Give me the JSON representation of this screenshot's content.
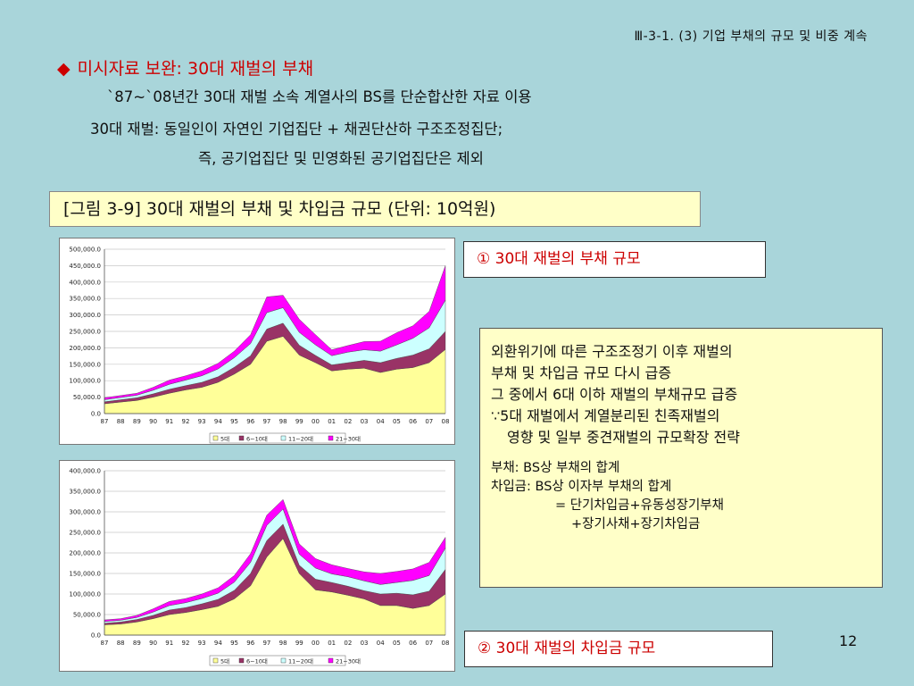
{
  "header": {
    "section": "Ⅲ-3-1. (3) 기업 부채의 규모 및 비중 계속"
  },
  "title": {
    "bullet": "◆",
    "text": "미시자료 보완: 30대 재벌의 부채"
  },
  "description": [
    "`87~`08년간 30대 재벌 소속 계열사의 BS를 단순합산한 자료 이용",
    "30대 재벌: 동일인이 자연인 기업집단 + 채권단산하 구조조정집단;",
    "즉, 공기업집단 및 민영화된 공기업집단은 제외"
  ],
  "figure_title": "[그림 3-9] 30대 재벌의 부채 및 차입금 규모 (단위: 10억원)",
  "captions": {
    "debt": "① 30대 재벌의 부채 규모",
    "borrowing": "② 30대 재벌의 차입금 규모"
  },
  "notes": {
    "main": [
      "외환위기에 따른 구조조정기 이후 재벌의",
      "부채 및 차입금 규모 다시 급증",
      "그 중에서 6대 이하 재벌의 부채규모 급증",
      "∵5대 재벌에서 계열분리된 친족재벌의",
      "영향 및 일부 중견재벌의 규모확장 전략"
    ],
    "defs": [
      "부채: BS상 부채의 합계",
      "차입금: BS상 이자부 부채의 합계",
      "= 단기차입금+유동성장기부채",
      "+장기사채+장기차입금"
    ]
  },
  "page_number": "12",
  "chart_data": [
    {
      "type": "area",
      "stacked": true,
      "title": "",
      "x": [
        "87",
        "88",
        "89",
        "90",
        "91",
        "92",
        "93",
        "94",
        "95",
        "96",
        "97",
        "98",
        "99",
        "00",
        "01",
        "02",
        "03",
        "04",
        "05",
        "06",
        "07",
        "08"
      ],
      "ylim": [
        0,
        500000
      ],
      "yticks": [
        "0.0",
        "50,000.0",
        "100,000.0",
        "150,000.0",
        "200,000.0",
        "250,000.0",
        "300,000.0",
        "350,000.0",
        "400,000.0",
        "450,000.0",
        "500,000.0"
      ],
      "grid": true,
      "legend_position": "bottom",
      "series": [
        {
          "name": "5대",
          "color": "#ffff99",
          "values": [
            30000,
            35000,
            40000,
            50000,
            62000,
            72000,
            80000,
            95000,
            120000,
            150000,
            220000,
            235000,
            178000,
            155000,
            130000,
            135000,
            138000,
            125000,
            135000,
            140000,
            155000,
            195000
          ]
        },
        {
          "name": "6~10대",
          "color": "#993366",
          "values": [
            6000,
            7000,
            8000,
            10000,
            12000,
            13000,
            15000,
            17000,
            21000,
            26000,
            37000,
            40000,
            30000,
            22000,
            18000,
            20000,
            24000,
            30000,
            33000,
            38000,
            42000,
            55000
          ]
        },
        {
          "name": "11~20대",
          "color": "#ccffff",
          "values": [
            6000,
            7000,
            8000,
            11000,
            15000,
            17000,
            20000,
            24000,
            29000,
            37000,
            50000,
            47000,
            39000,
            32000,
            28000,
            32000,
            32000,
            35000,
            41000,
            51000,
            64000,
            95000
          ]
        },
        {
          "name": "21~30대",
          "color": "#ff00ff",
          "values": [
            6000,
            6000,
            6000,
            9000,
            13000,
            13000,
            15000,
            17000,
            20000,
            27000,
            48000,
            38000,
            40000,
            31000,
            18000,
            20000,
            25000,
            30000,
            37000,
            38000,
            50000,
            105000
          ]
        }
      ]
    },
    {
      "type": "area",
      "stacked": true,
      "title": "",
      "x": [
        "87",
        "88",
        "89",
        "90",
        "91",
        "92",
        "93",
        "94",
        "95",
        "96",
        "97",
        "98",
        "99",
        "00",
        "01",
        "02",
        "03",
        "04",
        "05",
        "06",
        "07",
        "08"
      ],
      "ylim": [
        0,
        400000
      ],
      "yticks": [
        "0.0",
        "50,000.0",
        "100,000.0",
        "150,000.0",
        "200,000.0",
        "250,000.0",
        "300,000.0",
        "350,000.0",
        "400,000.0"
      ],
      "grid": true,
      "legend_position": "bottom",
      "series": [
        {
          "name": "5대",
          "color": "#ffff99",
          "values": [
            25000,
            27000,
            32000,
            40000,
            50000,
            55000,
            62000,
            70000,
            88000,
            120000,
            190000,
            235000,
            150000,
            110000,
            105000,
            97000,
            88000,
            72000,
            72000,
            65000,
            72000,
            100000
          ]
        },
        {
          "name": "6~10대",
          "color": "#993366",
          "values": [
            4000,
            5000,
            6000,
            8000,
            11000,
            12000,
            14000,
            17000,
            21000,
            30000,
            40000,
            35000,
            20000,
            26000,
            23000,
            22000,
            20000,
            28000,
            30000,
            33000,
            35000,
            60000
          ]
        },
        {
          "name": "11~20대",
          "color": "#ccffff",
          "values": [
            4000,
            4000,
            5000,
            8000,
            11000,
            12000,
            13000,
            15000,
            20000,
            27000,
            37000,
            37000,
            27000,
            27000,
            21000,
            23000,
            24000,
            23000,
            26000,
            35000,
            38000,
            52000
          ]
        },
        {
          "name": "21~30대",
          "color": "#ff00ff",
          "values": [
            4000,
            4000,
            5000,
            8000,
            10000,
            10000,
            11000,
            13000,
            16000,
            21000,
            25000,
            23000,
            25000,
            23000,
            22000,
            20000,
            22000,
            27000,
            27000,
            28000,
            32000,
            26000
          ]
        }
      ]
    }
  ]
}
